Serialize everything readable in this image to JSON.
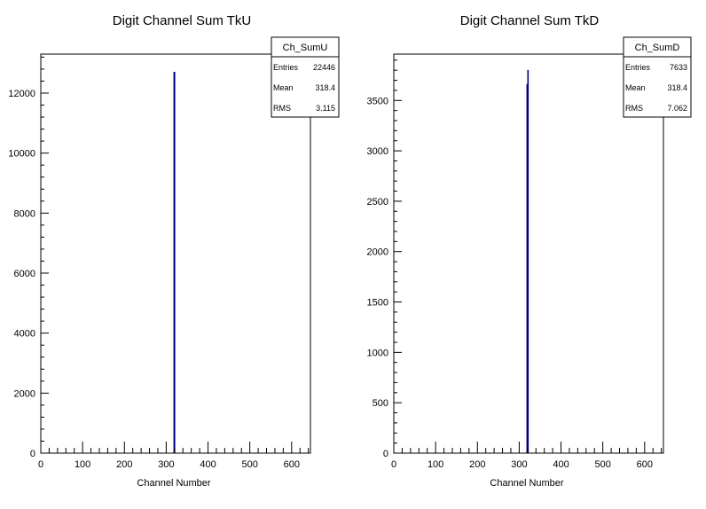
{
  "chart_data": [
    {
      "type": "bar",
      "title": "Digit Channel Sum TkU",
      "xlabel": "Channel Number",
      "ylabel": "",
      "xlim": [
        0,
        645
      ],
      "ylim": [
        0,
        13300
      ],
      "xticks": [
        0,
        100,
        200,
        300,
        400,
        500,
        600
      ],
      "yticks": [
        0,
        2000,
        4000,
        6000,
        8000,
        10000,
        12000
      ],
      "bins": [
        {
          "x0": 318,
          "x1": 321,
          "value": 12700
        }
      ],
      "bar_color": "#000080",
      "grid": false,
      "stats": {
        "name": "Ch_SumU",
        "rows": [
          {
            "label": "Entries",
            "value": "22446"
          },
          {
            "label": "Mean",
            "value": "318.4"
          },
          {
            "label": "RMS",
            "value": "3.115"
          }
        ]
      }
    },
    {
      "type": "bar",
      "title": "Digit Channel Sum TkD",
      "xlabel": "Channel Number",
      "ylabel": "",
      "xlim": [
        0,
        645
      ],
      "ylim": [
        0,
        3960
      ],
      "xticks": [
        0,
        100,
        200,
        300,
        400,
        500,
        600
      ],
      "yticks": [
        0,
        500,
        1000,
        1500,
        2000,
        2500,
        3000,
        3500
      ],
      "bins": [
        {
          "x0": 318,
          "x1": 320,
          "value": 3660
        },
        {
          "x0": 320,
          "x1": 321,
          "value": 3800
        }
      ],
      "bar_color": "#000080",
      "grid": false,
      "stats": {
        "name": "Ch_SumD",
        "rows": [
          {
            "label": "Entries",
            "value": "7633"
          },
          {
            "label": "Mean",
            "value": "318.4"
          },
          {
            "label": "RMS",
            "value": "7.062"
          }
        ]
      }
    }
  ]
}
